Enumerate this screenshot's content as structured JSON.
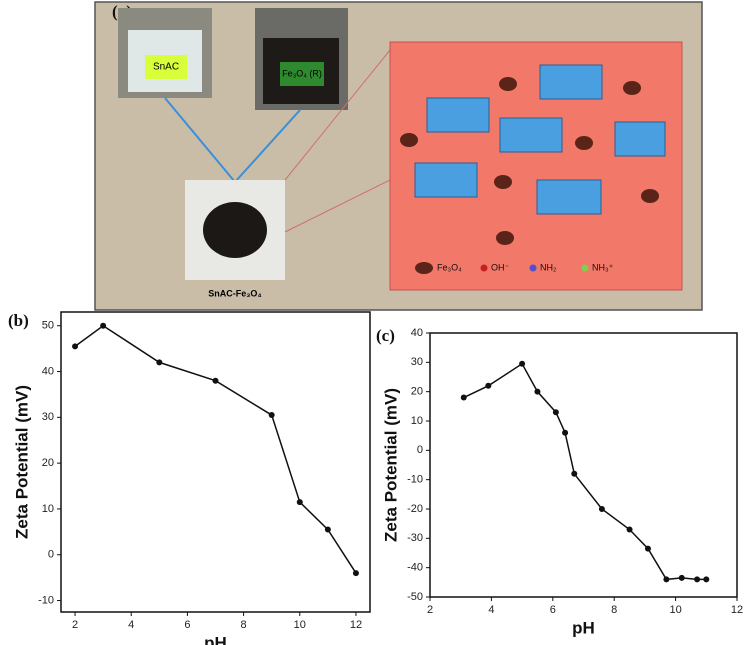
{
  "panel_a": {
    "label": "(a)",
    "sample_labels": [
      "SnAC",
      "Fe₃O₄ (R)"
    ],
    "product_label": "SnAC-Fe₃O₄",
    "legend": [
      "Fe₃O₄",
      "OH⁻",
      "NH₂",
      "NH₃⁺"
    ]
  },
  "chart_data": [
    {
      "type": "line",
      "panel_label": "(b)",
      "x_label": "pH",
      "y_label": "Zeta Potential (mV)",
      "x": [
        2,
        3,
        5,
        7,
        9,
        10,
        11,
        12
      ],
      "values": [
        45.5,
        50,
        42,
        38,
        30.5,
        11.5,
        5.5,
        -4
      ],
      "color": "#111111",
      "xlim": [
        1.5,
        12.5
      ],
      "xticks": [
        2,
        4,
        6,
        8,
        10,
        12
      ],
      "ylim": [
        -12.5,
        53
      ],
      "yticks": [
        -10,
        0,
        10,
        20,
        30,
        40,
        50
      ]
    },
    {
      "type": "line",
      "panel_label": "(c)",
      "x_label": "pH",
      "y_label": "Zeta Potential (mV)",
      "x": [
        3.1,
        3.9,
        5,
        5.5,
        6.1,
        6.4,
        6.7,
        7.6,
        8.5,
        9.1,
        9.7,
        10.2,
        10.7,
        11
      ],
      "values": [
        18,
        22,
        29.5,
        20,
        13,
        6,
        -8,
        -20,
        -27,
        -33.5,
        -44,
        -43.5,
        -44,
        -44
      ],
      "color": "#111111",
      "xlim": [
        2,
        12
      ],
      "xticks": [
        2,
        4,
        6,
        8,
        10,
        12
      ],
      "ylim": [
        -50,
        40
      ],
      "yticks": [
        -50,
        -40,
        -30,
        -20,
        -10,
        0,
        10,
        20,
        30,
        40
      ]
    }
  ]
}
